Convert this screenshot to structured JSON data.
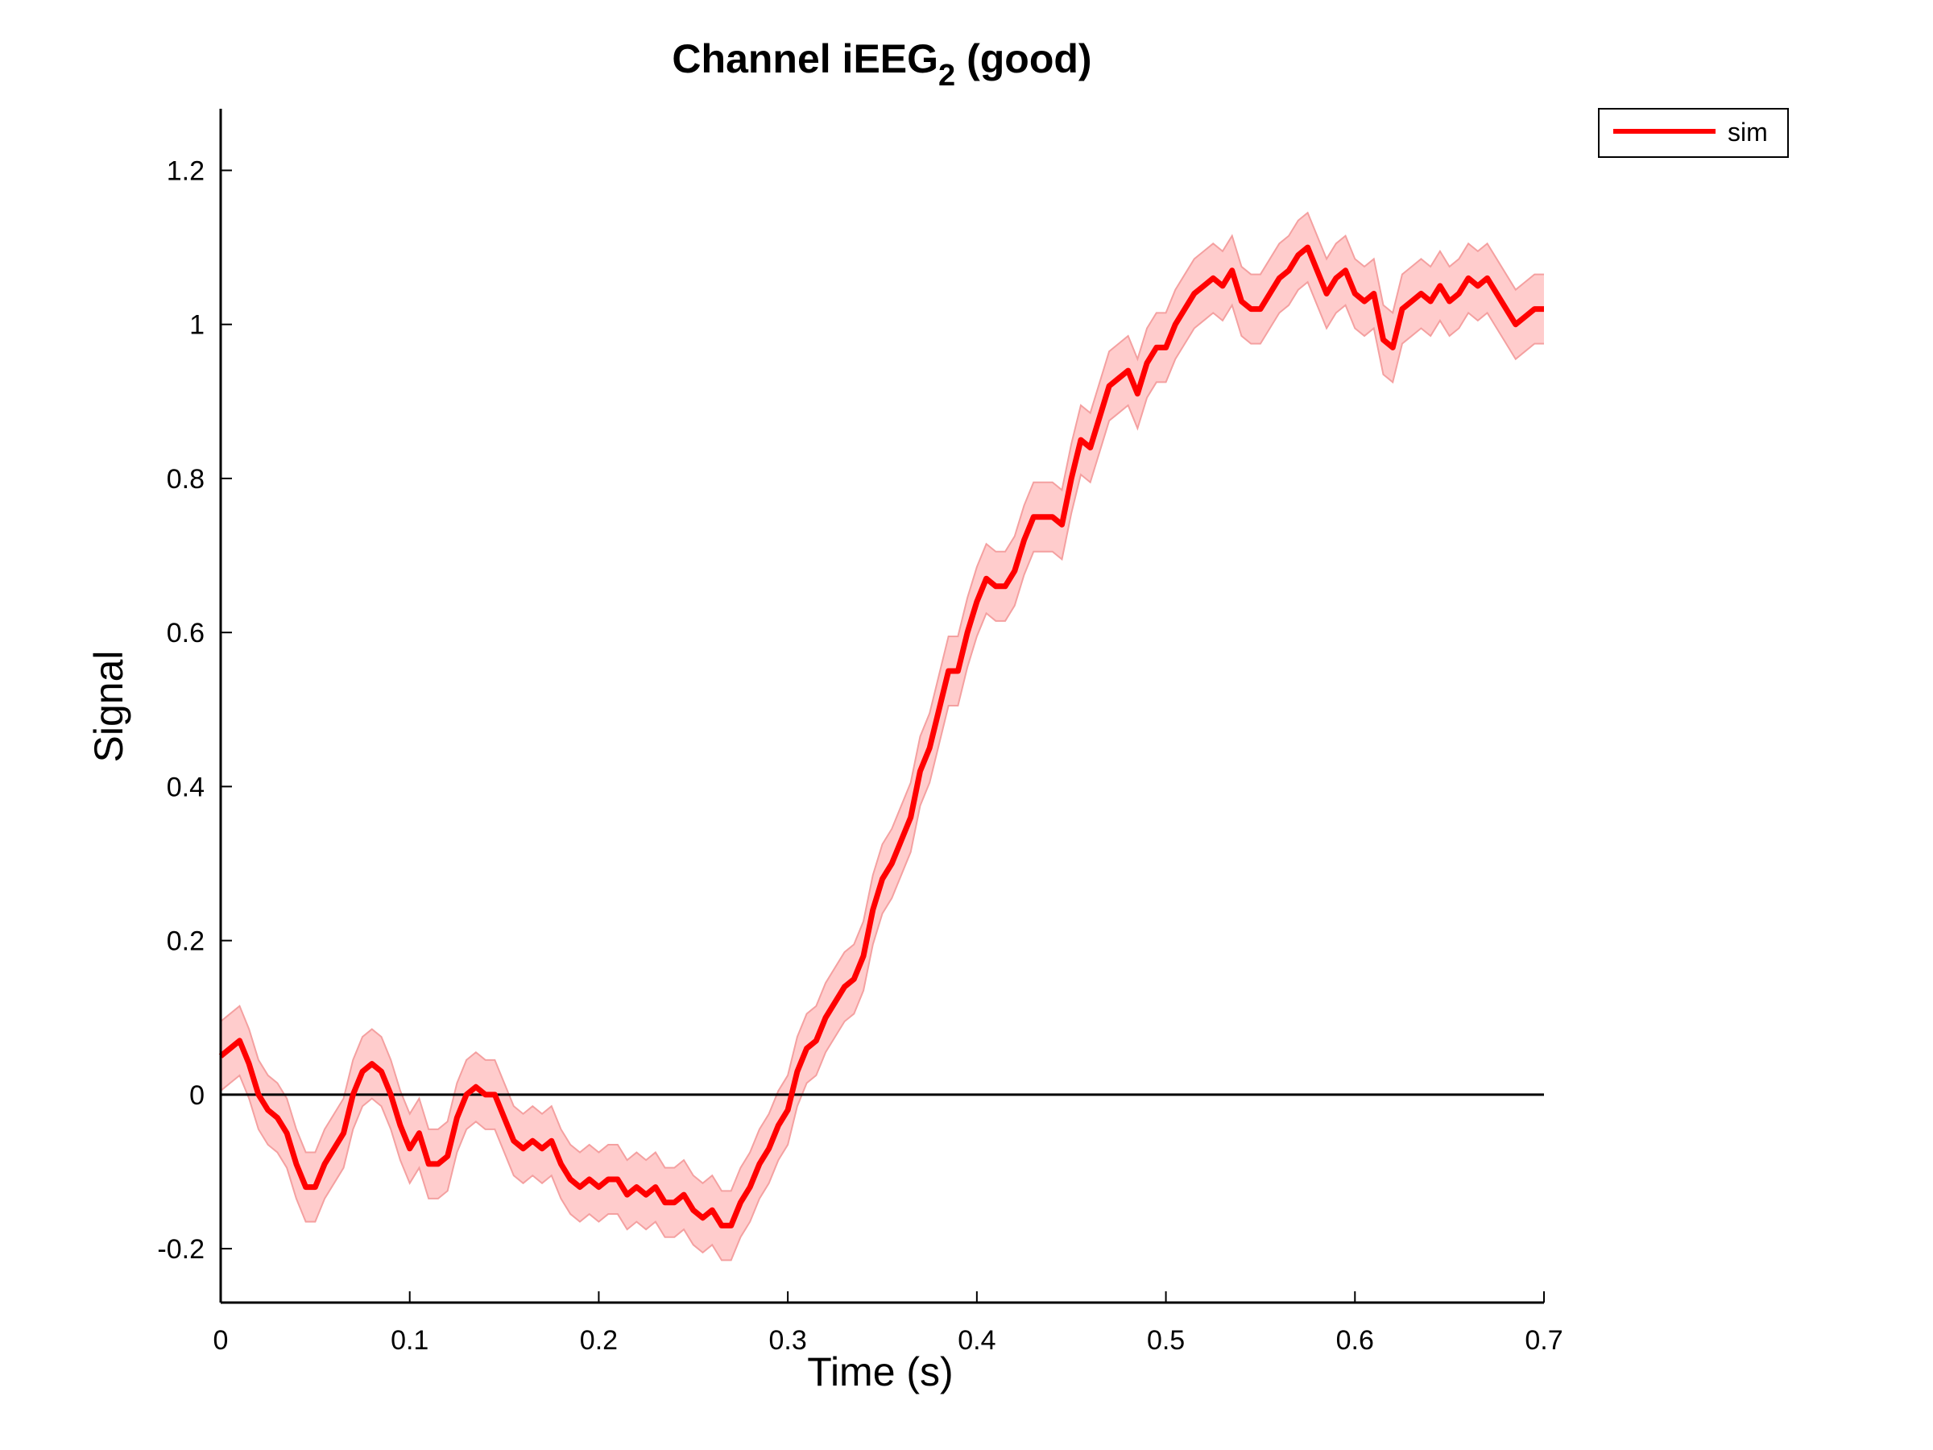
{
  "chart_data": {
    "type": "line",
    "title": {
      "prefix": "Channel iEEG",
      "subscript": "2",
      "suffix": " (good)"
    },
    "xlabel": "Time (s)",
    "ylabel": "Signal",
    "xlim": [
      0,
      0.7
    ],
    "ylim": [
      -0.27,
      1.28
    ],
    "xticks": [
      "0",
      "0.1",
      "0.2",
      "0.3",
      "0.4",
      "0.5",
      "0.6",
      "0.7"
    ],
    "xtick_values": [
      0,
      0.1,
      0.2,
      0.3,
      0.4,
      0.5,
      0.6,
      0.7
    ],
    "yticks": [
      "-0.2",
      "0",
      "0.2",
      "0.4",
      "0.6",
      "0.8",
      "1",
      "1.2"
    ],
    "ytick_values": [
      -0.2,
      0,
      0.2,
      0.4,
      0.6,
      0.8,
      1,
      1.2
    ],
    "grid": false,
    "zero_line": true,
    "legend_position": "top-right",
    "series": [
      {
        "name": "sim",
        "color": "#ff0000",
        "band_color": "#ffcccc",
        "band_edge_color": "#f4a0a0",
        "band_halfwidth": 0.045,
        "x": [
          0,
          0.005,
          0.01,
          0.015,
          0.02,
          0.025,
          0.03,
          0.035,
          0.04,
          0.045,
          0.05,
          0.055,
          0.06,
          0.065,
          0.07,
          0.075,
          0.08,
          0.085,
          0.09,
          0.095,
          0.1,
          0.105,
          0.11,
          0.115,
          0.12,
          0.125,
          0.13,
          0.135,
          0.14,
          0.145,
          0.15,
          0.155,
          0.16,
          0.165,
          0.17,
          0.175,
          0.18,
          0.185,
          0.19,
          0.195,
          0.2,
          0.205,
          0.21,
          0.215,
          0.22,
          0.225,
          0.23,
          0.235,
          0.24,
          0.245,
          0.25,
          0.255,
          0.26,
          0.265,
          0.27,
          0.275,
          0.28,
          0.285,
          0.29,
          0.295,
          0.3,
          0.305,
          0.31,
          0.315,
          0.32,
          0.325,
          0.33,
          0.335,
          0.34,
          0.345,
          0.35,
          0.355,
          0.36,
          0.365,
          0.37,
          0.375,
          0.38,
          0.385,
          0.39,
          0.395,
          0.4,
          0.405,
          0.41,
          0.415,
          0.42,
          0.425,
          0.43,
          0.435,
          0.44,
          0.445,
          0.45,
          0.455,
          0.46,
          0.465,
          0.47,
          0.475,
          0.48,
          0.485,
          0.49,
          0.495,
          0.5,
          0.505,
          0.51,
          0.515,
          0.52,
          0.525,
          0.53,
          0.535,
          0.54,
          0.545,
          0.55,
          0.555,
          0.56,
          0.565,
          0.57,
          0.575,
          0.58,
          0.585,
          0.59,
          0.595,
          0.6,
          0.605,
          0.61,
          0.615,
          0.62,
          0.625,
          0.63,
          0.635,
          0.64,
          0.645,
          0.65,
          0.655,
          0.66,
          0.665,
          0.67,
          0.675,
          0.68,
          0.685,
          0.69,
          0.695,
          0.7
        ],
        "values": [
          0.05,
          0.06,
          0.07,
          0.04,
          0.0,
          -0.02,
          -0.03,
          -0.05,
          -0.09,
          -0.12,
          -0.12,
          -0.09,
          -0.07,
          -0.05,
          0.0,
          0.03,
          0.04,
          0.03,
          0.0,
          -0.04,
          -0.07,
          -0.05,
          -0.09,
          -0.09,
          -0.08,
          -0.03,
          0.0,
          0.01,
          0.0,
          0.0,
          -0.03,
          -0.06,
          -0.07,
          -0.06,
          -0.07,
          -0.06,
          -0.09,
          -0.11,
          -0.12,
          -0.11,
          -0.12,
          -0.11,
          -0.11,
          -0.13,
          -0.12,
          -0.13,
          -0.12,
          -0.14,
          -0.14,
          -0.13,
          -0.15,
          -0.16,
          -0.15,
          -0.17,
          -0.17,
          -0.14,
          -0.12,
          -0.09,
          -0.07,
          -0.04,
          -0.02,
          0.03,
          0.06,
          0.07,
          0.1,
          0.12,
          0.14,
          0.15,
          0.18,
          0.24,
          0.28,
          0.3,
          0.33,
          0.36,
          0.42,
          0.45,
          0.5,
          0.55,
          0.55,
          0.6,
          0.64,
          0.67,
          0.66,
          0.66,
          0.68,
          0.72,
          0.75,
          0.75,
          0.75,
          0.74,
          0.8,
          0.85,
          0.84,
          0.88,
          0.92,
          0.93,
          0.94,
          0.91,
          0.95,
          0.97,
          0.97,
          1.0,
          1.02,
          1.04,
          1.05,
          1.06,
          1.05,
          1.07,
          1.03,
          1.02,
          1.02,
          1.04,
          1.06,
          1.07,
          1.09,
          1.1,
          1.07,
          1.04,
          1.06,
          1.07,
          1.04,
          1.03,
          1.04,
          0.98,
          0.97,
          1.02,
          1.03,
          1.04,
          1.03,
          1.05,
          1.03,
          1.04,
          1.06,
          1.05,
          1.06,
          1.04,
          1.02,
          1.0,
          1.01,
          1.02,
          1.02
        ]
      }
    ]
  }
}
